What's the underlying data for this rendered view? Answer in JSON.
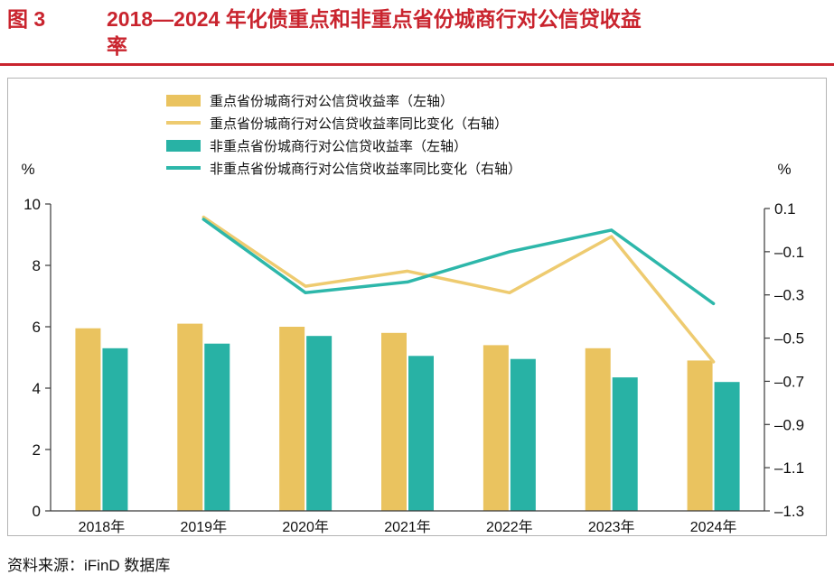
{
  "header": {
    "figure_label": "图 3",
    "title": "2018—2024 年化债重点和非重点省份城商行对公信贷收益率"
  },
  "source": "资料来源：iFinD 数据库",
  "colors": {
    "accent_red": "#c9242e",
    "gold_bar": "#eac35f",
    "gold_line": "#eecb70",
    "teal_bar": "#28b2a5",
    "teal_line": "#2db7aa",
    "axis": "#3a3a3a"
  },
  "chart_data": {
    "type": "bar+line combo",
    "categories": [
      "2018年",
      "2019年",
      "2020年",
      "2021年",
      "2022年",
      "2023年",
      "2024年"
    ],
    "left_axis": {
      "unit": "%",
      "min": 0,
      "max": 10,
      "ticks": [
        0,
        2,
        4,
        6,
        8,
        10
      ]
    },
    "right_axis": {
      "unit": "%",
      "min": -1.3,
      "max": 0.1,
      "ticks": [
        0.1,
        -0.1,
        -0.3,
        -0.5,
        -0.7,
        -0.9,
        -1.1,
        -1.3
      ]
    },
    "grid": false,
    "legend_position": "top-center",
    "series": [
      {
        "name": "重点省份城商行对公信贷收益率（左轴）",
        "type": "bar",
        "axis": "left",
        "color": "#eac35f",
        "values": [
          5.95,
          6.1,
          6.0,
          5.8,
          5.4,
          5.3,
          4.9
        ]
      },
      {
        "name": "重点省份城商行对公信贷收益率同比变化（右轴）",
        "type": "line",
        "axis": "right",
        "color": "#eecb70",
        "values": [
          null,
          0.06,
          -0.26,
          -0.19,
          -0.29,
          -0.03,
          -0.61
        ]
      },
      {
        "name": "非重点省份城商行对公信贷收益率（左轴）",
        "type": "bar",
        "axis": "left",
        "color": "#28b2a5",
        "values": [
          5.3,
          5.45,
          5.7,
          5.05,
          4.95,
          4.35,
          4.2
        ]
      },
      {
        "name": "非重点省份城商行对公信贷收益率同比变化（右轴）",
        "type": "line",
        "axis": "right",
        "color": "#2db7aa",
        "values": [
          null,
          0.05,
          -0.29,
          -0.24,
          -0.1,
          0.0,
          -0.34
        ]
      }
    ]
  }
}
